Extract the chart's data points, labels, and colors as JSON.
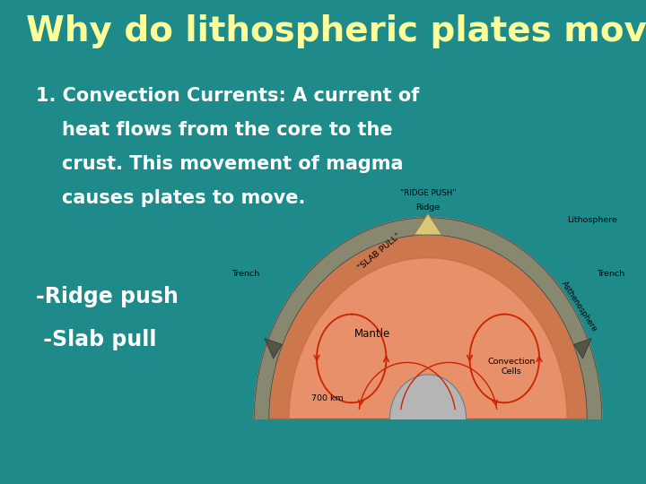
{
  "bg": "#1e8a8a",
  "title": "Why do lithospheric plates move?",
  "title_color": "#ffff99",
  "title_fs": 28,
  "body": [
    "1. Convection Currents: A current of",
    "    heat flows from the core to the",
    "    crust. This movement of magma",
    "    causes plates to move."
  ],
  "body_color": "#ffffff",
  "body_fs": 15,
  "bullets": [
    "-Ridge push",
    " -Slab pull"
  ],
  "bullet_color": "#ffffff",
  "bullet_fs": 17,
  "diag_bg": "#c5dae5",
  "mantle_col": "#e8906a",
  "asth_col": "#bf6a3e",
  "lith_col": "#888870",
  "core_col": "#b5b5b5",
  "arrow_col": "#cc2200",
  "label_fs": 6.8
}
